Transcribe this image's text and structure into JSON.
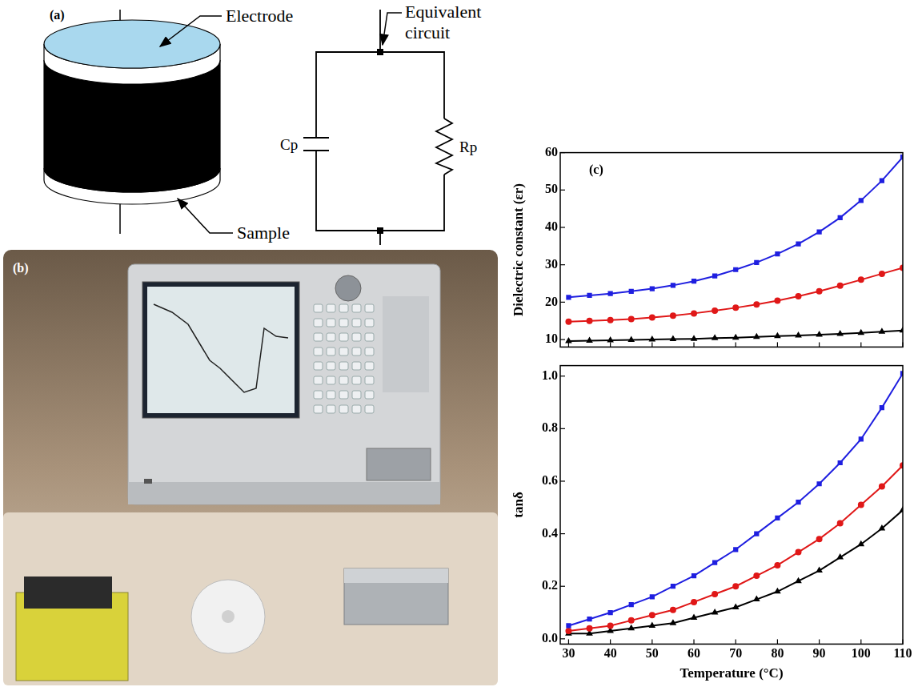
{
  "figure": {
    "a": {
      "panel_label": "(a)",
      "electrode": "Electrode",
      "sample": "Sample",
      "equivalent_circuit": "Equivalent circuit",
      "capacitor": "Cp",
      "resistor": "Rp"
    },
    "b": {
      "panel_label": "(b)"
    }
  },
  "chart_data": [
    {
      "type": "line",
      "annotations": [
        "(c)"
      ],
      "ylabel": "Dielectric constant (εr)",
      "x": [
        30,
        35,
        40,
        45,
        50,
        55,
        60,
        65,
        70,
        75,
        80,
        85,
        90,
        95,
        100,
        105,
        110
      ],
      "xlim": [
        28,
        110
      ],
      "xticks": [
        30,
        40,
        50,
        60,
        70,
        80,
        90,
        100,
        110
      ],
      "ylim": [
        8,
        60
      ],
      "yticks": [
        10,
        20,
        30,
        40,
        50,
        60
      ],
      "grid": false,
      "tick_labels": "y",
      "series": [
        {
          "color": "#1f1fe0",
          "marker": "square",
          "values": [
            21.3,
            21.8,
            22.3,
            22.9,
            23.6,
            24.5,
            25.6,
            27.0,
            28.7,
            30.6,
            32.9,
            35.6,
            38.8,
            42.6,
            47.2,
            52.5,
            58.8
          ]
        },
        {
          "color": "#e01818",
          "marker": "circle",
          "values": [
            14.8,
            15.0,
            15.2,
            15.5,
            15.9,
            16.4,
            17.0,
            17.7,
            18.5,
            19.4,
            20.4,
            21.6,
            22.9,
            24.4,
            26.0,
            27.6,
            29.2
          ]
        },
        {
          "color": "#000000",
          "marker": "triangle",
          "values": [
            9.6,
            9.7,
            9.8,
            9.9,
            10.0,
            10.1,
            10.2,
            10.4,
            10.5,
            10.7,
            10.9,
            11.1,
            11.3,
            11.5,
            11.8,
            12.1,
            12.4
          ]
        }
      ]
    },
    {
      "type": "line",
      "xlabel": "Temperature (°C)",
      "ylabel": "tanδ",
      "x": [
        30,
        35,
        40,
        45,
        50,
        55,
        60,
        65,
        70,
        75,
        80,
        85,
        90,
        95,
        100,
        105,
        110
      ],
      "xlim": [
        28,
        110
      ],
      "xticks": [
        30,
        40,
        50,
        60,
        70,
        80,
        90,
        100,
        110
      ],
      "ylim": [
        -0.02,
        1.04
      ],
      "yticks": [
        {
          "value": 0,
          "label": "0.0"
        },
        0.2,
        0.4,
        0.6,
        0.8,
        {
          "value": 1,
          "label": "1.0"
        }
      ],
      "grid": false,
      "series": [
        {
          "color": "#1f1fe0",
          "marker": "square",
          "values": [
            0.05,
            0.075,
            0.1,
            0.13,
            0.16,
            0.2,
            0.24,
            0.29,
            0.34,
            0.4,
            0.46,
            0.52,
            0.59,
            0.67,
            0.76,
            0.88,
            1.01
          ]
        },
        {
          "color": "#e01818",
          "marker": "circle",
          "values": [
            0.03,
            0.04,
            0.05,
            0.07,
            0.09,
            0.11,
            0.14,
            0.17,
            0.2,
            0.24,
            0.28,
            0.33,
            0.38,
            0.44,
            0.51,
            0.58,
            0.66
          ]
        },
        {
          "color": "#000000",
          "marker": "triangle",
          "values": [
            0.02,
            0.02,
            0.03,
            0.04,
            0.05,
            0.06,
            0.08,
            0.1,
            0.12,
            0.15,
            0.18,
            0.22,
            0.26,
            0.31,
            0.36,
            0.42,
            0.49
          ]
        }
      ]
    }
  ]
}
